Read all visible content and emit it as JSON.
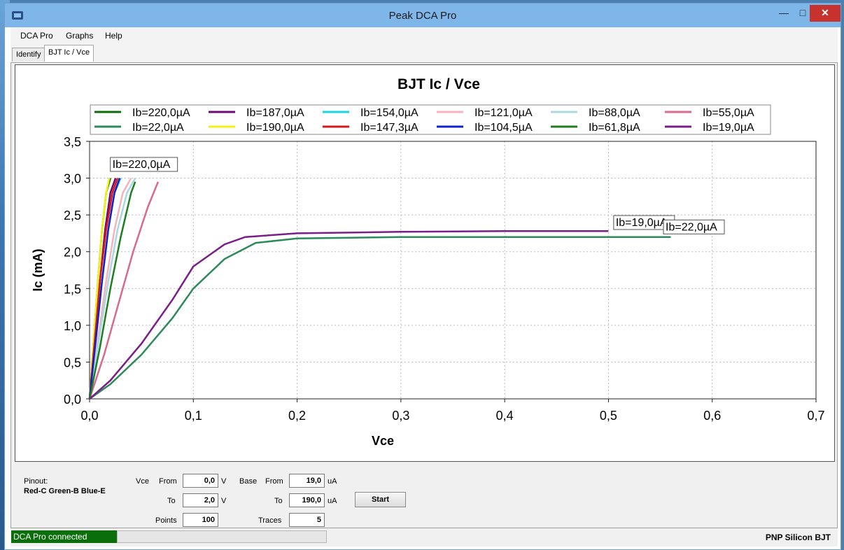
{
  "window": {
    "title": "Peak DCA Pro"
  },
  "menu": [
    "DCA Pro",
    "Graphs",
    "Help"
  ],
  "tabs": [
    {
      "label": "Identify",
      "active": false
    },
    {
      "label": "BJT Ic / Vce",
      "active": true
    }
  ],
  "chart_data": {
    "type": "line",
    "title": "BJT Ic / Vce",
    "xlabel": "Vce",
    "ylabel": "Ic (mA)",
    "xlim": [
      0,
      0.7
    ],
    "ylim": [
      0,
      3.5
    ],
    "xticks": [
      "0,0",
      "0,1",
      "0,2",
      "0,3",
      "0,4",
      "0,5",
      "0,6",
      "0,7"
    ],
    "yticks": [
      "0,0",
      "0,5",
      "1,0",
      "1,5",
      "2,0",
      "2,5",
      "3,0",
      "3,5"
    ],
    "grid": true,
    "legend_position": "top",
    "series": [
      {
        "name": "Ib=220,0µA",
        "color": "#0b6b0b",
        "x": [
          0,
          0.004,
          0.008,
          0.012,
          0.016,
          0.02
        ],
        "y": [
          0,
          0.8,
          1.6,
          2.3,
          2.8,
          3.0
        ]
      },
      {
        "name": "Ib=187,0µA",
        "color": "#6b0a6b",
        "x": [
          0,
          0.005,
          0.01,
          0.015,
          0.02,
          0.025
        ],
        "y": [
          0,
          0.8,
          1.6,
          2.3,
          2.8,
          3.0
        ]
      },
      {
        "name": "Ib=154,0µA",
        "color": "#17d8e0",
        "x": [
          0,
          0.006,
          0.012,
          0.018,
          0.024,
          0.03
        ],
        "y": [
          0,
          0.8,
          1.6,
          2.3,
          2.8,
          3.0
        ]
      },
      {
        "name": "Ib=121,0µA",
        "color": "#f5b3be",
        "x": [
          0,
          0.008,
          0.016,
          0.024,
          0.032,
          0.04
        ],
        "y": [
          0,
          0.8,
          1.6,
          2.3,
          2.8,
          3.0
        ]
      },
      {
        "name": "Ib=88,0µA",
        "color": "#a8d8e0",
        "x": [
          0,
          0.009,
          0.018,
          0.027,
          0.036,
          0.044
        ],
        "y": [
          0,
          0.8,
          1.6,
          2.3,
          2.8,
          3.0
        ]
      },
      {
        "name": "Ib=55,0µA",
        "color": "#d86a8e",
        "x": [
          0,
          0.014,
          0.028,
          0.042,
          0.056,
          0.066
        ],
        "y": [
          0,
          0.6,
          1.3,
          2.0,
          2.6,
          2.95
        ]
      },
      {
        "name": "Ib=22,0µA",
        "color": "#2e8a5a",
        "x": [
          0,
          0.02,
          0.05,
          0.08,
          0.1,
          0.13,
          0.16,
          0.2,
          0.3,
          0.4,
          0.5,
          0.56
        ],
        "y": [
          0,
          0.2,
          0.6,
          1.1,
          1.5,
          1.9,
          2.12,
          2.18,
          2.2,
          2.2,
          2.2,
          2.2
        ]
      },
      {
        "name": "Ib=190,0µA",
        "color": "#f2f215",
        "x": [
          0,
          0.004,
          0.008,
          0.012,
          0.016,
          0.019
        ],
        "y": [
          0,
          0.8,
          1.6,
          2.3,
          2.8,
          3.0
        ]
      },
      {
        "name": "Ib=147,3µA",
        "color": "#d81818",
        "x": [
          0,
          0.005,
          0.01,
          0.016,
          0.022,
          0.027
        ],
        "y": [
          0,
          0.8,
          1.6,
          2.3,
          2.8,
          3.0
        ]
      },
      {
        "name": "Ib=104,5µA",
        "color": "#1020c8",
        "x": [
          0,
          0.006,
          0.012,
          0.018,
          0.024,
          0.029
        ],
        "y": [
          0,
          0.8,
          1.6,
          2.3,
          2.8,
          3.0
        ]
      },
      {
        "name": "Ib=61,8µA",
        "color": "#1e7d1e",
        "x": [
          0,
          0.01,
          0.02,
          0.03,
          0.04,
          0.044
        ],
        "y": [
          0,
          0.7,
          1.5,
          2.2,
          2.8,
          2.95
        ]
      },
      {
        "name": "Ib=19,0µA",
        "color": "#7a1e8a",
        "x": [
          0,
          0.02,
          0.05,
          0.08,
          0.1,
          0.13,
          0.15,
          0.2,
          0.3,
          0.4,
          0.5
        ],
        "y": [
          0,
          0.25,
          0.75,
          1.35,
          1.8,
          2.1,
          2.2,
          2.25,
          2.27,
          2.28,
          2.28
        ]
      }
    ],
    "annotations": [
      {
        "text": "Ib=220,0µA",
        "x": 0.02,
        "y": 3.12
      },
      {
        "text": "Ib=19,0µA",
        "x": 0.505,
        "y": 2.33
      },
      {
        "text": "Ib=22,0µA",
        "x": 0.553,
        "y": 2.27
      }
    ]
  },
  "controls": {
    "pinout_label": "Pinout:",
    "pinout_value": "Red-C Green-B Blue-E",
    "vce_label": "Vce",
    "from_label": "From",
    "to_label": "To",
    "vce_from": "0,0",
    "vce_to": "2,0",
    "unit_v": "V",
    "base_label": "Base",
    "base_from": "19,0",
    "base_to": "190,0",
    "unit_ua": "uA",
    "points_label": "Points",
    "points_value": "100",
    "traces_label": "Traces",
    "traces_value": "5",
    "start_label": "Start"
  },
  "status": {
    "connection": "DCA Pro connected",
    "device": "PNP Silicon BJT"
  }
}
